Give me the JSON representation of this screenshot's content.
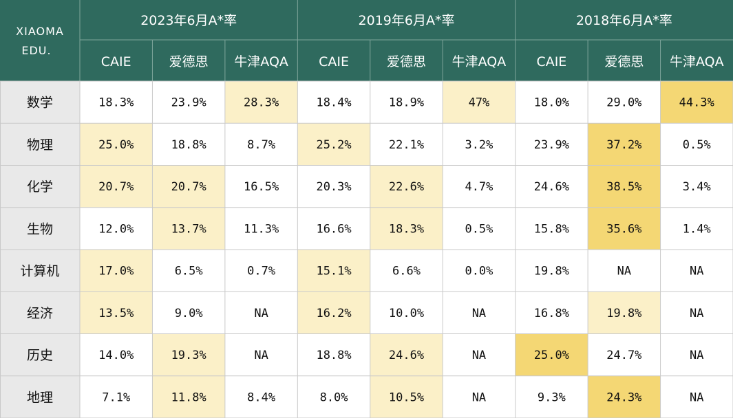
{
  "chart_data": {
    "type": "table",
    "brand": [
      "XIAOMA",
      "EDU."
    ],
    "groups": [
      "2023年6月A*率",
      "2019年6月A*率",
      "2018年6月A*率"
    ],
    "subheaders": [
      "CAIE",
      "爱德思",
      "牛津AQA"
    ],
    "rows": [
      {
        "subject": "数学",
        "values": [
          "18.3%",
          "23.9%",
          "28.3%",
          "18.4%",
          "18.9%",
          "47%",
          "18.0%",
          "29.0%",
          "44.3%"
        ],
        "highlight": [
          0,
          0,
          1,
          0,
          0,
          1,
          0,
          0,
          2
        ]
      },
      {
        "subject": "物理",
        "values": [
          "25.0%",
          "18.8%",
          "8.7%",
          "25.2%",
          "22.1%",
          "3.2%",
          "23.9%",
          "37.2%",
          "0.5%"
        ],
        "highlight": [
          1,
          0,
          0,
          1,
          0,
          0,
          0,
          2,
          0
        ]
      },
      {
        "subject": "化学",
        "values": [
          "20.7%",
          "20.7%",
          "16.5%",
          "20.3%",
          "22.6%",
          "4.7%",
          "24.6%",
          "38.5%",
          "3.4%"
        ],
        "highlight": [
          1,
          1,
          0,
          0,
          1,
          0,
          0,
          2,
          0
        ]
      },
      {
        "subject": "生物",
        "values": [
          "12.0%",
          "13.7%",
          "11.3%",
          "16.6%",
          "18.3%",
          "0.5%",
          "15.8%",
          "35.6%",
          "1.4%"
        ],
        "highlight": [
          0,
          1,
          0,
          0,
          1,
          0,
          0,
          2,
          0
        ]
      },
      {
        "subject": "计算机",
        "values": [
          "17.0%",
          "6.5%",
          "0.7%",
          "15.1%",
          "6.6%",
          "0.0%",
          "19.8%",
          "NA",
          "NA"
        ],
        "highlight": [
          1,
          0,
          0,
          1,
          0,
          0,
          0,
          0,
          0
        ]
      },
      {
        "subject": "经济",
        "values": [
          "13.5%",
          "9.0%",
          "NA",
          "16.2%",
          "10.0%",
          "NA",
          "16.8%",
          "19.8%",
          "NA"
        ],
        "highlight": [
          1,
          0,
          0,
          1,
          0,
          0,
          0,
          1,
          0
        ]
      },
      {
        "subject": "历史",
        "values": [
          "14.0%",
          "19.3%",
          "NA",
          "18.8%",
          "24.6%",
          "NA",
          "25.0%",
          "24.7%",
          "NA"
        ],
        "highlight": [
          0,
          1,
          0,
          0,
          1,
          0,
          2,
          0,
          0
        ]
      },
      {
        "subject": "地理",
        "values": [
          "7.1%",
          "11.8%",
          "8.4%",
          "8.0%",
          "10.5%",
          "NA",
          "9.3%",
          "24.3%",
          "NA"
        ],
        "highlight": [
          0,
          1,
          0,
          0,
          1,
          0,
          0,
          2,
          0
        ]
      }
    ],
    "colors": {
      "header": "#2f6a5e",
      "header_text": "#ffffff",
      "row_label_bg": "#e9e9e9",
      "highlight_light": "#fbf0c8",
      "highlight_strong": "#f4d774",
      "cell_bg": "#ffffff",
      "grid": "#c9c9c9"
    }
  }
}
